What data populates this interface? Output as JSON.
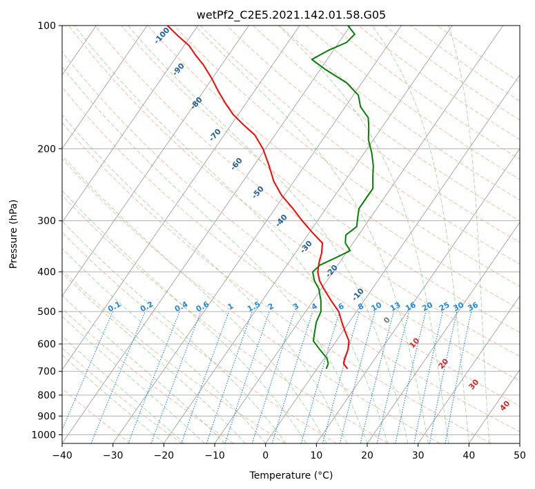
{
  "chart_data": {
    "type": "line",
    "subtype": "skew-t log-p diagram",
    "title": "wetPf2_C2E5.2021.142.01.58.G05",
    "xlabel": "Temperature (°C)",
    "ylabel": "Pressure (hPa)",
    "xlim": [
      -40,
      50
    ],
    "ylim": [
      1050,
      100
    ],
    "y_scale": "log",
    "x_ticks": [
      -40,
      -30,
      -20,
      -10,
      0,
      10,
      20,
      30,
      40,
      50
    ],
    "y_ticks": [
      100,
      200,
      300,
      400,
      500,
      600,
      700,
      800,
      900,
      1000
    ],
    "grid": true,
    "series": [
      {
        "color": "#ff0000",
        "p": [
          690,
          670,
          650,
          620,
          590,
          560,
          530,
          500,
          470,
          440,
          420,
          400,
          380,
          360,
          340,
          320,
          300,
          280,
          260,
          240,
          220,
          200,
          185,
          175,
          165,
          155,
          145,
          135,
          125,
          118,
          112,
          106,
          100
        ],
        "t": [
          6.0,
          4.5,
          4.0,
          3.5,
          2.5,
          0.5,
          -1.5,
          -3.5,
          -6.5,
          -9.5,
          -11.5,
          -13.0,
          -14.0,
          -14.8,
          -16.0,
          -19.5,
          -23.0,
          -26.5,
          -30.5,
          -34.0,
          -37.0,
          -40.5,
          -44.0,
          -47.5,
          -51.0,
          -54.0,
          -57.0,
          -60.0,
          -63.5,
          -66.5,
          -69.0,
          -72.5,
          -76.0
        ]
      },
      {
        "color": "#008000",
        "p": [
          690,
          670,
          650,
          620,
          590,
          560,
          530,
          500,
          470,
          440,
          420,
          400,
          385,
          370,
          355,
          340,
          325,
          310,
          295,
          280,
          265,
          250,
          235,
          220,
          205,
          190,
          178,
          168,
          158,
          148,
          138,
          128,
          121,
          115,
          110,
          105,
          100
        ],
        "t": [
          1.8,
          1.5,
          0.5,
          -2.0,
          -4.5,
          -5.5,
          -6.5,
          -7.0,
          -8.5,
          -10.5,
          -12.5,
          -14.0,
          -13.5,
          -11.5,
          -9.5,
          -11.5,
          -12.5,
          -11.5,
          -12.5,
          -13.5,
          -13.5,
          -13.5,
          -15.0,
          -16.5,
          -18.5,
          -21.0,
          -22.5,
          -24.0,
          -27.0,
          -29.0,
          -33.0,
          -39.0,
          -43.0,
          -41.0,
          -38.5,
          -38.0,
          -40.5
        ]
      }
    ],
    "mixing_ratio_labels": [
      "0.1",
      "0.2",
      "0.4",
      "0.6",
      "1",
      "1.5",
      "2",
      "3",
      "4",
      "6",
      "8",
      "10",
      "13",
      "16",
      "20",
      "25",
      "30",
      "36"
    ],
    "dry_adiabat_labels": [
      "-100",
      "-90",
      "-80",
      "-70",
      "-60",
      "-50",
      "-40",
      "-30",
      "-20",
      "-10"
    ],
    "moist_adiabat_labels": [
      "0",
      "10",
      "20",
      "30",
      "40"
    ],
    "colors": {
      "temperature": "#ff0000",
      "dewpoint": "#008000",
      "dry_adiabat": "#f4a582",
      "moist_adiabat": "#66bb66",
      "mixing_ratio": "#1e88e5",
      "isotherm": "#777777",
      "dry_label": "#1f5f99",
      "moist_label": "#d62728",
      "moist_zero_label": "#777777"
    }
  }
}
